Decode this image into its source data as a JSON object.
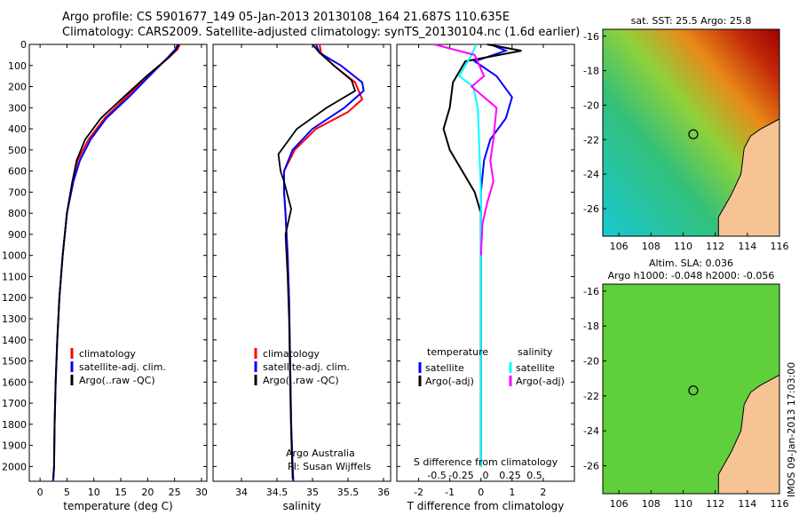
{
  "titles": {
    "line1": "Argo profile: CS 5901677_149 05-Jan-2013 20130108_164 21.687S 110.635E",
    "line2": "Climatology: CARS2009. Satellite-adjusted climatology: synTS_20130104.nc (1.6d earlier)"
  },
  "legends": {
    "climatology": "climatology",
    "satellite_adj": "satellite-adj. clim.",
    "argo_raw": "Argo(..raw -QC)",
    "temperature": "temperature",
    "salinity": "salinity",
    "satellite": "satellite",
    "argo_adj": "Argo(-adj)"
  },
  "annotations": {
    "institution": "Argo Australia",
    "pi": "PI: Susan Wijffels",
    "s_diff_label": "S difference from climatology",
    "sst_title": "sat. SST: 25.5 Argo: 25.8",
    "sla_line1": "Altim. SLA: 0.036",
    "sla_line2": "Argo h1000: -0.048 h2000: -0.056",
    "stamp": "IMOS 09-Jan-2013 17:03:00"
  },
  "colors": {
    "climatology": "#ff0000",
    "satellite": "#0000ff",
    "argo": "#000000",
    "sal_satellite": "#00ffff",
    "sal_argo": "#ff00ff"
  },
  "chart_data": [
    {
      "type": "line",
      "xlabel": "temperature (deg C)",
      "ylabel": "",
      "xlim": [
        -2,
        31
      ],
      "ylim": [
        2070,
        0
      ],
      "xticks": [
        0,
        5,
        10,
        15,
        20,
        25,
        30
      ],
      "yticks": [
        0,
        100,
        200,
        300,
        400,
        500,
        600,
        700,
        800,
        900,
        1000,
        1100,
        1200,
        1300,
        1400,
        1500,
        1600,
        1700,
        1800,
        1900,
        2000
      ],
      "series": [
        {
          "name": "climatology",
          "x": [
            26,
            25.5,
            24,
            20,
            16,
            12,
            9,
            7,
            6,
            5,
            4.2,
            3.6,
            3.2,
            2.9,
            2.7,
            2.6,
            2.4
          ],
          "y": [
            0,
            25,
            60,
            150,
            250,
            350,
            450,
            550,
            650,
            800,
            1000,
            1200,
            1400,
            1600,
            1800,
            2000,
            2070
          ]
        },
        {
          "name": "satellite-adj. clim.",
          "x": [
            25.6,
            25.1,
            23.8,
            20.3,
            16.5,
            12.3,
            9.4,
            7.4,
            6.2,
            5,
            4.2,
            3.6,
            3.2,
            2.9,
            2.7,
            2.6,
            2.4
          ],
          "y": [
            0,
            25,
            60,
            150,
            250,
            350,
            450,
            550,
            650,
            800,
            1000,
            1200,
            1400,
            1600,
            1800,
            2000,
            2070
          ]
        },
        {
          "name": "Argo(..raw -QC)",
          "x": [
            25.8,
            25.3,
            24,
            19.8,
            15.5,
            11.3,
            8.4,
            6.8,
            6,
            5,
            4.2,
            3.6,
            3.2,
            2.9,
            2.7,
            2.6,
            2.5
          ],
          "y": [
            0,
            25,
            60,
            150,
            250,
            350,
            450,
            550,
            650,
            800,
            1000,
            1200,
            1400,
            1600,
            1800,
            2000,
            2060
          ]
        }
      ]
    },
    {
      "type": "line",
      "xlabel": "salinity",
      "ylabel": "",
      "xlim": [
        33.6,
        36.1
      ],
      "ylim": [
        2070,
        0
      ],
      "xticks": [
        34,
        34.5,
        35,
        35.5,
        36
      ],
      "xticklabels": [
        "34",
        "34.5",
        "35",
        "35.5",
        "36"
      ],
      "series": [
        {
          "name": "climatology",
          "x": [
            35.1,
            35.12,
            35.3,
            35.6,
            35.7,
            35.5,
            35.05,
            34.75,
            34.6,
            34.6,
            34.62,
            34.65,
            34.67,
            34.68,
            34.69,
            34.7,
            34.71,
            34.72,
            34.73
          ],
          "y": [
            0,
            40,
            100,
            180,
            260,
            320,
            400,
            500,
            600,
            700,
            800,
            1000,
            1200,
            1400,
            1600,
            1800,
            1900,
            2000,
            2070
          ]
        },
        {
          "name": "satellite-adj. clim.",
          "x": [
            35.05,
            35.1,
            35.4,
            35.7,
            35.72,
            35.45,
            35.0,
            34.72,
            34.6,
            34.6,
            34.62,
            34.65,
            34.67,
            34.68,
            34.69,
            34.7,
            34.71,
            34.72,
            34.73
          ],
          "y": [
            0,
            40,
            100,
            180,
            220,
            300,
            400,
            500,
            600,
            700,
            800,
            1000,
            1200,
            1400,
            1600,
            1800,
            1900,
            2000,
            2070
          ]
        },
        {
          "name": "Argo(..raw -QC)",
          "x": [
            35.0,
            35.1,
            35.3,
            35.55,
            35.6,
            35.2,
            34.78,
            34.52,
            34.55,
            34.6,
            34.7,
            34.62,
            34.65,
            34.67,
            34.68,
            34.69,
            34.7,
            34.71,
            34.72
          ],
          "y": [
            0,
            40,
            100,
            170,
            220,
            300,
            400,
            520,
            600,
            650,
            780,
            900,
            1100,
            1300,
            1500,
            1700,
            1850,
            1950,
            2060
          ]
        }
      ]
    },
    {
      "type": "line",
      "xlabel": "T difference from climatology",
      "xlabel2": "S difference from climatology",
      "ylabel": "",
      "xlim": [
        -2.7,
        3.0
      ],
      "ylim": [
        2070,
        0
      ],
      "xticks": [
        -2,
        -1,
        0,
        1,
        2
      ],
      "sticks": [
        -0.5,
        -0.25,
        0,
        0.25,
        0.5
      ],
      "series": [
        {
          "name": "T satellite",
          "x": [
            0.3,
            0.8,
            -0.2,
            0.5,
            1.0,
            0.8,
            0.3,
            0.1,
            0,
            0,
            0,
            0,
            0
          ],
          "y": [
            0,
            30,
            80,
            150,
            250,
            350,
            450,
            550,
            700,
            800,
            1000,
            1500,
            2000
          ]
        },
        {
          "name": "T Argo(-adj)",
          "x": [
            0.2,
            1.3,
            -0.5,
            -0.9,
            -1.0,
            -1.2,
            -1.0,
            -0.6,
            -0.2,
            0,
            0,
            0,
            0
          ],
          "y": [
            0,
            30,
            80,
            180,
            300,
            400,
            500,
            600,
            700,
            800,
            1000,
            1500,
            2000
          ]
        },
        {
          "name": "S satellite",
          "x": [
            -0.15,
            -0.3,
            -0.7,
            -0.25,
            -0.1,
            -0.05,
            0,
            0,
            0,
            0,
            0
          ],
          "y": [
            0,
            50,
            150,
            200,
            300,
            500,
            700,
            900,
            1200,
            1600,
            2000
          ]
        },
        {
          "name": "S Argo(-adj)",
          "x": [
            -1.5,
            -0.2,
            0.1,
            -0.3,
            0.5,
            0.4,
            0.3,
            0.4,
            0.2,
            0.05,
            0
          ],
          "y": [
            0,
            50,
            150,
            200,
            300,
            450,
            550,
            650,
            750,
            850,
            1000
          ]
        }
      ]
    },
    {
      "type": "heatmap",
      "title": "sat. SST: 25.5 Argo: 25.8",
      "xlim": [
        105,
        116
      ],
      "ylim": [
        -27.6,
        -15.6
      ],
      "xticks": [
        106,
        108,
        110,
        112,
        114,
        116
      ],
      "yticks": [
        -16,
        -18,
        -20,
        -22,
        -24,
        -26
      ],
      "marker": {
        "lon": 110.635,
        "lat": -21.687
      }
    },
    {
      "type": "heatmap",
      "title": "Altim. SLA: 0.036",
      "xlim": [
        105,
        116
      ],
      "ylim": [
        -27.6,
        -15.6
      ],
      "xticks": [
        106,
        108,
        110,
        112,
        114,
        116
      ],
      "yticks": [
        -16,
        -18,
        -20,
        -22,
        -24,
        -26
      ],
      "marker": {
        "lon": 110.635,
        "lat": -21.687
      }
    }
  ]
}
